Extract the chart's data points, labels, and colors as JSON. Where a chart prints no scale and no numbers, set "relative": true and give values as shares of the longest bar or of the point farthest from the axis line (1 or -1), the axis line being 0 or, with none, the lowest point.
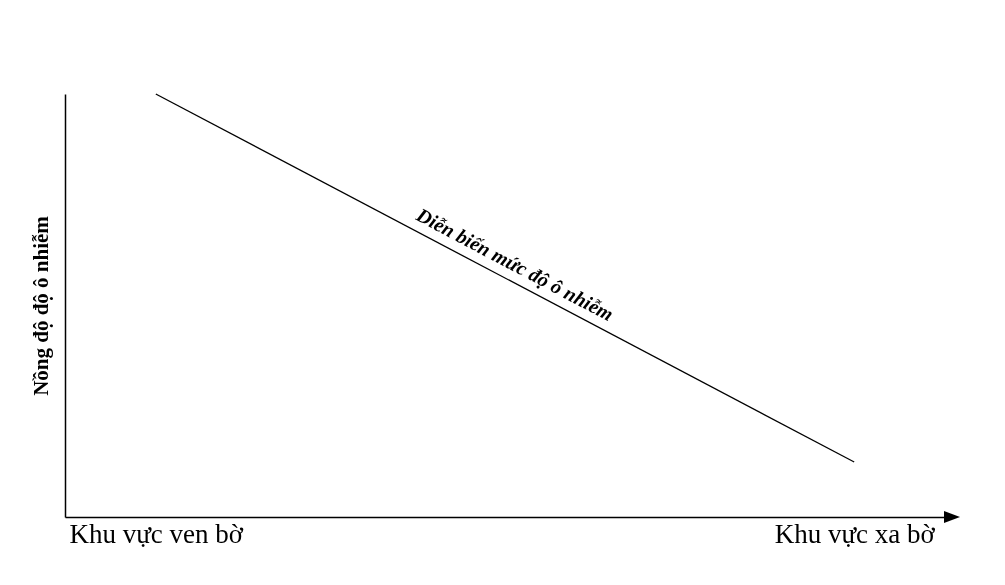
{
  "chart_data": {
    "type": "line",
    "relative": true,
    "ylabel": "Nồng độ độ ô nhiễm",
    "categories": [
      "Khu vực ven bờ",
      "Khu vực xa bờ"
    ],
    "series": [
      {
        "color": "#000000",
        "values": [
          1,
          0.13
        ]
      }
    ],
    "annotations": [
      "Diễn biến mức độ ô nhiễm"
    ],
    "grid": false,
    "marker": "none",
    "line_style": "solid"
  }
}
